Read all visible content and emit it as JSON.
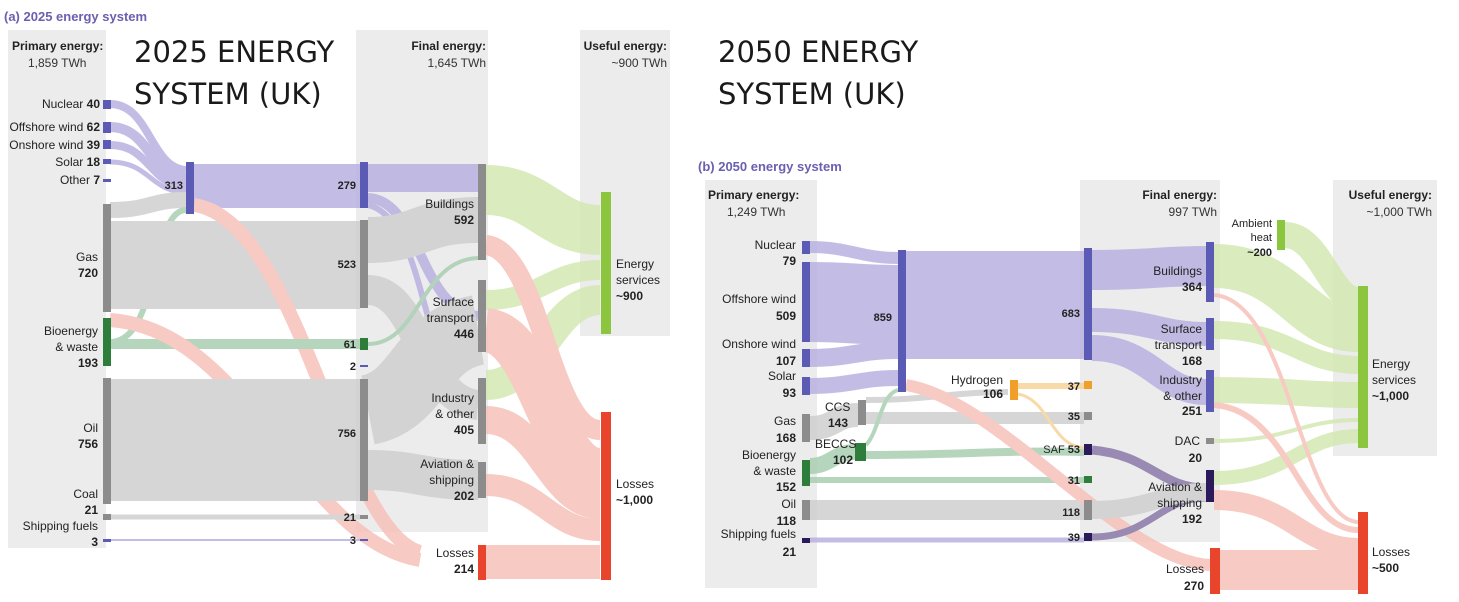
{
  "overlay": {
    "left_line1": "2025 ENERGY",
    "left_line2": "SYSTEM (UK)",
    "right_line1": "2050 ENERGY",
    "right_line2": "SYSTEM (UK)"
  },
  "p2025": {
    "title": "(a) 2025 energy system",
    "primary_head": "Primary energy:",
    "primary_total": "1,859 TWh",
    "final_head": "Final energy:",
    "final_total": "1,645 TWh",
    "useful_head": "Useful energy:",
    "useful_total": "~900 TWh",
    "sources": {
      "nuclear": {
        "name": "Nuclear",
        "value": "40"
      },
      "offshore": {
        "name": "Offshore wind",
        "value": "62"
      },
      "onshore": {
        "name": "Onshore wind",
        "value": "39"
      },
      "solar": {
        "name": "Solar",
        "value": "18"
      },
      "other": {
        "name": "Other",
        "value": "7"
      },
      "gas": {
        "name": "Gas",
        "value": "720"
      },
      "bio1": "Bioenergy",
      "bio2": "& waste",
      "bio_value": "193",
      "oil": {
        "name": "Oil",
        "value": "756"
      },
      "coal": {
        "name": "Coal",
        "value": "21"
      },
      "ship": {
        "name": "Shipping fuels",
        "value": "3"
      }
    },
    "elec_value": "313",
    "carriers": {
      "elec": "279",
      "gas": "523",
      "bio": "61",
      "other": "2",
      "oil": "756",
      "coal": "21",
      "ship": "3"
    },
    "sectors": {
      "buildings": "Buildings",
      "buildings_v": "592",
      "transport1": "Surface",
      "transport2": "transport",
      "transport_v": "446",
      "industry1": "Industry",
      "industry2": "& other",
      "industry_v": "405",
      "aviation1": "Aviation &",
      "aviation2": "shipping",
      "aviation_v": "202",
      "losses": "Losses",
      "losses_v": "214"
    },
    "useful": {
      "energy1": "Energy",
      "energy2": "services",
      "energy_v": "~900",
      "losses": "Losses",
      "losses_v": "~1,000"
    }
  },
  "p2050": {
    "title": "(b) 2050 energy system",
    "primary_head": "Primary energy:",
    "primary_total": "1,249 TWh",
    "final_head": "Final energy:",
    "final_total": "997 TWh",
    "useful_head": "Useful energy:",
    "useful_total": "~1,000 TWh",
    "sources": {
      "nuclear": {
        "name": "Nuclear",
        "value": "79"
      },
      "offshore": {
        "name": "Offshore wind",
        "value": "509"
      },
      "onshore": {
        "name": "Onshore wind",
        "value": "107"
      },
      "solar": {
        "name": "Solar",
        "value": "93"
      },
      "gas": {
        "name": "Gas",
        "value": "168"
      },
      "bio1": "Bioenergy",
      "bio2": "& waste",
      "bio_value": "152",
      "oil": {
        "name": "Oil",
        "value": "118"
      },
      "ship": {
        "name": "Shipping fuels",
        "value": "21"
      }
    },
    "elec_value": "859",
    "ccs": {
      "name": "CCS",
      "value": "143"
    },
    "beccs": {
      "name": "BECCS",
      "value": "102"
    },
    "hydrogen": {
      "name": "Hydrogen",
      "value": "106"
    },
    "carriers": {
      "elec": "683",
      "h2": "37",
      "gas": "35",
      "saf_name": "SAF",
      "saf": "53",
      "bio": "31",
      "oil": "118",
      "ship": "39"
    },
    "sectors": {
      "buildings": "Buildings",
      "buildings_v": "364",
      "transport1": "Surface",
      "transport2": "transport",
      "transport_v": "168",
      "industry1": "Industry",
      "industry2": "& other",
      "industry_v": "251",
      "dac": "DAC",
      "dac_v": "20",
      "aviation1": "Aviation &",
      "aviation2": "shipping",
      "aviation_v": "192",
      "losses": "Losses",
      "losses_v": "270"
    },
    "ambient1": "Ambient",
    "ambient2": "heat",
    "ambient_v": "~200",
    "useful": {
      "energy1": "Energy",
      "energy2": "services",
      "energy_v": "~1,000",
      "losses": "Losses",
      "losses_v": "~500"
    }
  },
  "colors": {
    "purple": "#5b5bb5",
    "purple_flow": "#b9b2e2",
    "gray": "#8c8c8c",
    "gray_flow": "#cfcfcf",
    "green": "#2e7d3a",
    "green_flow": "#a9cfb2",
    "lime": "#8cc63f",
    "lime_flow": "#d4e8b3",
    "red": "#e8452c",
    "red_flow": "#f6c1ba",
    "orange": "#f0a02a",
    "navy": "#2a1a5c",
    "title": "#6a5fb0",
    "panel": "#ececec"
  }
}
